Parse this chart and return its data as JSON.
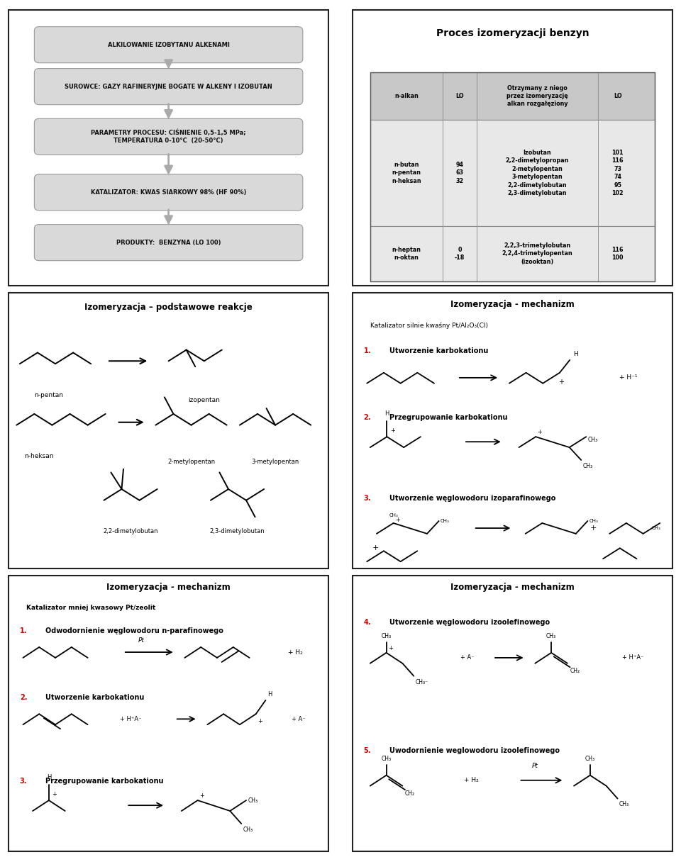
{
  "bg_color": "#ffffff",
  "panel1_boxes": [
    "ALKILOWANIE IZOBYTANU ALKENAMI",
    "SUROWCE: GAZY RAFINERYJNE BOGATE W ALKENY I IZOBUTAN",
    "PARAMETRY PROCESU: CIŚNIENIE 0,5-1,5 MPa;\nTEMPERATURA 0-10°C  (20-50°C)",
    "KATALIZATOR: KWAS SIARKOWY 98% (HF 90%)",
    "PRODUKTY:  BENZYNA (LO 100)"
  ],
  "panel2_title": "Proces izomeryzacji benzyn",
  "panel2_header": [
    "n-alkan",
    "LO",
    "Otrzymany z niego\nprzez izomeryzację\nalkan rozgałęziony",
    "LO"
  ],
  "panel2_row1_col1": "n-butan\nn-pentan\nn-heksan",
  "panel2_row1_col2": "94\n63\n32",
  "panel2_row1_col3": "Izobutan\n2,2-dimetylopropan\n2-metylopentan\n3-metylopentan\n2,2-dimetylobutan\n2,3-dimetylobutan",
  "panel2_row1_col4": "101\n116\n73\n74\n95\n102",
  "panel2_row2_col1": "n-heptan\nn-oktan",
  "panel2_row2_col2": "0\n-18",
  "panel2_row2_col3": "2,2,3-trimetylobutan\n2,2,4-trimetylopentan\n(izooktan)",
  "panel2_row2_col4": "116\n100",
  "panel3_title": "Izomeryzacja – podstawowe reakcje",
  "panel4_title": "Izomeryzacja - mechanizm",
  "panel4_subtitle": "Katalizator silnie kwaśny Pt/Al₂O₃(Cl)",
  "panel4_steps": [
    "1.",
    "2.",
    "3."
  ],
  "panel4_step_texts": [
    "Utworzenie karbokationu",
    "Przegrupowanie karbokationu",
    "Utworzenie węglowodoru izoparafinowego"
  ],
  "panel5_title": "Izomeryzacja - mechanizm",
  "panel5_subtitle": "Katalizator mniej kwasowy Pt/zeolit",
  "panel5_steps": [
    "1.",
    "2.",
    "3."
  ],
  "panel5_step_texts": [
    "Odwodornienie węglowodoru n-parafinowego",
    "Utworzenie karbokationu",
    "Przegrupowanie karbokationu"
  ],
  "panel6_title": "Izomeryzacja - mechanizm",
  "panel6_steps": [
    "4.",
    "5."
  ],
  "panel6_step_texts": [
    "Utworzenie węglowodoru izoolefinowego",
    "Uwodornienie weglowodoru izoolefinowego"
  ],
  "red_color": "#cc0000",
  "box_fill": "#d9d9d9",
  "table_header_fill": "#c8c8c8",
  "table_row1_fill": "#e8e8e8",
  "table_row2_fill": "#d0d0d0"
}
